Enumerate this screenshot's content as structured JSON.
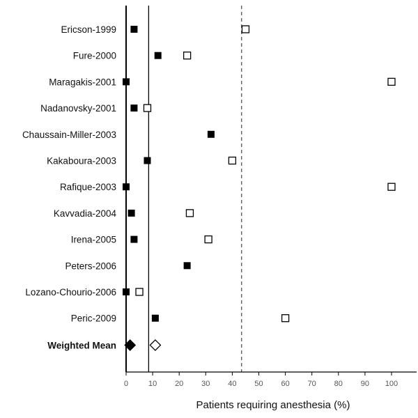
{
  "chart_data": {
    "type": "scatter",
    "title": "",
    "xlabel": "Patients requiring anesthesia (%)",
    "ylabel": "",
    "xlim": [
      0,
      110
    ],
    "xticks": [
      0,
      10,
      20,
      30,
      40,
      50,
      60,
      70,
      80,
      90,
      100
    ],
    "grid": false,
    "legend": "none",
    "studies": [
      {
        "label": "Ericson-1999",
        "filled": 3,
        "open": 45
      },
      {
        "label": "Fure-2000",
        "filled": 12,
        "open": 23
      },
      {
        "label": "Maragakis-2001",
        "filled": 0,
        "open": 100
      },
      {
        "label": "Nadanovsky-2001",
        "filled": 3,
        "open": 8
      },
      {
        "label": "Chaussain-Miller-2003",
        "filled": 32,
        "open": null
      },
      {
        "label": "Kakaboura-2003",
        "filled": 8,
        "open": 40
      },
      {
        "label": "Rafique-2003",
        "filled": 0,
        "open": 100
      },
      {
        "label": "Kavvadia-2004",
        "filled": 2,
        "open": 24
      },
      {
        "label": "Irena-2005",
        "filled": 3,
        "open": 31
      },
      {
        "label": "Peters-2006",
        "filled": 23,
        "open": null
      },
      {
        "label": "Lozano-Chourio-2006",
        "filled": 0,
        "open": 5
      },
      {
        "label": "Peric-2009",
        "filled": 11,
        "open": 60
      }
    ],
    "weighted_mean": {
      "label": "Weighted Mean",
      "filled": 1.5,
      "open": 11
    },
    "reference_lines": [
      {
        "style": "solid",
        "x": 8.5
      },
      {
        "style": "dashed",
        "x": 43.5
      }
    ],
    "colors": {
      "filled": "#000000",
      "open_stroke": "#000000",
      "open_fill": "#ffffff",
      "dashed_line": "#555555",
      "axis": "#000000",
      "tick_label": "#555555"
    }
  }
}
